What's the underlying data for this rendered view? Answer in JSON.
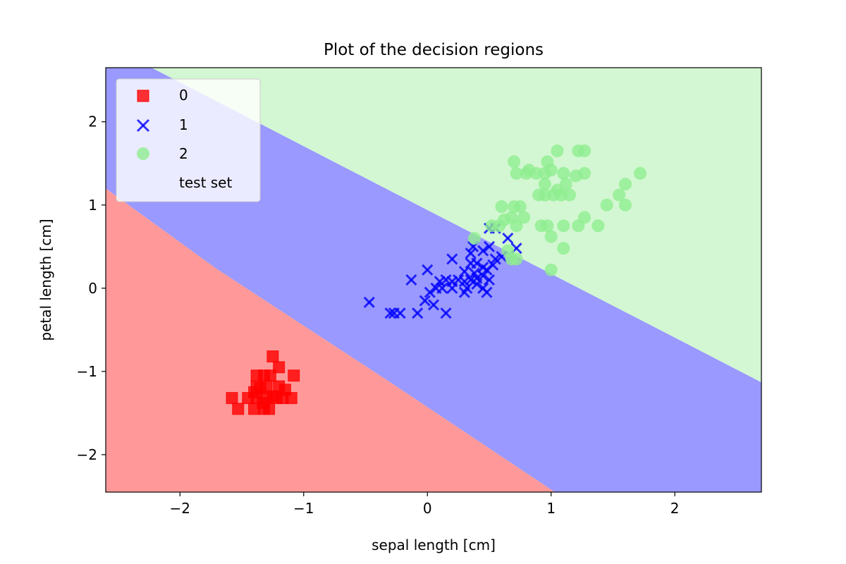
{
  "chart_data": {
    "type": "scatter",
    "title": "Plot of the decision regions",
    "xlabel": "sepal length [cm]",
    "ylabel": "petal length [cm]",
    "xlim": [
      -2.6,
      2.7
    ],
    "ylim": [
      -2.45,
      2.65
    ],
    "xticks": [
      -2,
      -1,
      0,
      1,
      2
    ],
    "yticks": [
      -2,
      -1,
      0,
      1,
      2
    ],
    "xtick_labels": [
      "−2",
      "−1",
      "0",
      "1",
      "2"
    ],
    "ytick_labels": [
      "−2",
      "−1",
      "0",
      "1",
      "2"
    ],
    "grid": false,
    "legend_position": "top-left",
    "regions": [
      {
        "class": "0",
        "color": "#ff9999",
        "polygon": [
          [
            -2.6,
            1.2
          ],
          [
            -1.7,
            0.23
          ],
          [
            -0.3,
            -1.13
          ],
          [
            1.03,
            -2.45
          ],
          [
            -2.6,
            -2.45
          ]
        ]
      },
      {
        "class": "1",
        "color": "#9999ff",
        "polygon": [
          [
            -2.6,
            1.2
          ],
          [
            -1.7,
            0.23
          ],
          [
            -0.3,
            -1.13
          ],
          [
            1.03,
            -2.45
          ],
          [
            2.7,
            -2.45
          ],
          [
            2.7,
            -1.13
          ],
          [
            -2.23,
            2.65
          ],
          [
            -2.6,
            2.65
          ]
        ]
      },
      {
        "class": "2",
        "color": "#d2f7d2",
        "polygon": [
          [
            -2.23,
            2.65
          ],
          [
            2.7,
            -1.13
          ],
          [
            2.7,
            2.65
          ]
        ]
      }
    ],
    "series": [
      {
        "name": "0",
        "marker": "square",
        "color": "#ff0000",
        "points": [
          [
            -1.25,
            -0.82
          ],
          [
            -1.38,
            -1.05
          ],
          [
            -1.32,
            -1.05
          ],
          [
            -1.27,
            -1.05
          ],
          [
            -1.08,
            -1.05
          ],
          [
            -1.2,
            -0.95
          ],
          [
            -1.38,
            -1.18
          ],
          [
            -1.3,
            -1.18
          ],
          [
            -1.2,
            -1.18
          ],
          [
            -1.35,
            -1.2
          ],
          [
            -1.45,
            -1.32
          ],
          [
            -1.38,
            -1.32
          ],
          [
            -1.3,
            -1.32
          ],
          [
            -1.22,
            -1.32
          ],
          [
            -1.17,
            -1.32
          ],
          [
            -1.1,
            -1.32
          ],
          [
            -1.58,
            -1.32
          ],
          [
            -1.53,
            -1.45
          ],
          [
            -1.4,
            -1.45
          ],
          [
            -1.32,
            -1.45
          ],
          [
            -1.28,
            -1.45
          ],
          [
            -1.33,
            -1.38
          ],
          [
            -1.25,
            -1.3
          ],
          [
            -1.15,
            -1.22
          ],
          [
            -1.4,
            -1.25
          ]
        ]
      },
      {
        "name": "1",
        "marker": "x",
        "color": "#0000ff",
        "points": [
          [
            -0.47,
            -0.17
          ],
          [
            -0.3,
            -0.3
          ],
          [
            -0.27,
            -0.3
          ],
          [
            -0.22,
            -0.3
          ],
          [
            -0.08,
            -0.3
          ],
          [
            -0.13,
            0.1
          ],
          [
            0.0,
            0.22
          ],
          [
            0.15,
            -0.3
          ],
          [
            0.05,
            -0.2
          ],
          [
            -0.02,
            -0.15
          ],
          [
            0.02,
            -0.05
          ],
          [
            0.07,
            0.0
          ],
          [
            0.1,
            0.08
          ],
          [
            0.15,
            0.1
          ],
          [
            0.2,
            0.08
          ],
          [
            0.25,
            0.1
          ],
          [
            0.3,
            0.08
          ],
          [
            0.35,
            0.1
          ],
          [
            0.4,
            0.12
          ],
          [
            0.5,
            0.1
          ],
          [
            0.12,
            0.0
          ],
          [
            0.2,
            0.0
          ],
          [
            0.32,
            0.0
          ],
          [
            0.45,
            0.0
          ],
          [
            0.48,
            -0.05
          ],
          [
            0.2,
            0.35
          ],
          [
            0.35,
            0.42
          ],
          [
            0.37,
            0.5
          ],
          [
            0.45,
            0.45
          ],
          [
            0.5,
            0.5
          ],
          [
            0.55,
            0.35
          ],
          [
            0.6,
            0.38
          ],
          [
            0.35,
            0.3
          ],
          [
            0.4,
            0.3
          ],
          [
            0.45,
            0.25
          ],
          [
            0.3,
            0.2
          ],
          [
            0.38,
            0.18
          ],
          [
            0.45,
            0.15
          ],
          [
            0.53,
            0.28
          ],
          [
            0.48,
            0.22
          ],
          [
            0.4,
            0.05
          ],
          [
            0.3,
            -0.05
          ],
          [
            0.65,
            0.6
          ],
          [
            0.72,
            0.48
          ],
          [
            0.5,
            0.72
          ],
          [
            0.55,
            0.72
          ]
        ]
      },
      {
        "name": "2",
        "marker": "circle",
        "color": "#90ee90",
        "points": [
          [
            0.7,
            1.52
          ],
          [
            0.82,
            1.42
          ],
          [
            0.97,
            1.52
          ],
          [
            1.05,
            1.65
          ],
          [
            1.22,
            1.65
          ],
          [
            1.27,
            1.65
          ],
          [
            1.0,
            1.42
          ],
          [
            0.72,
            1.38
          ],
          [
            0.8,
            1.38
          ],
          [
            0.88,
            1.38
          ],
          [
            0.95,
            1.38
          ],
          [
            1.1,
            1.38
          ],
          [
            1.27,
            1.38
          ],
          [
            1.2,
            1.35
          ],
          [
            1.72,
            1.38
          ],
          [
            0.95,
            1.25
          ],
          [
            1.12,
            1.25
          ],
          [
            1.05,
            1.18
          ],
          [
            0.9,
            1.12
          ],
          [
            0.95,
            1.12
          ],
          [
            1.02,
            1.12
          ],
          [
            1.08,
            1.12
          ],
          [
            1.15,
            1.12
          ],
          [
            1.6,
            1.25
          ],
          [
            1.55,
            1.12
          ],
          [
            1.45,
            1.0
          ],
          [
            1.6,
            1.0
          ],
          [
            0.6,
            0.98
          ],
          [
            0.7,
            0.98
          ],
          [
            0.75,
            0.98
          ],
          [
            0.78,
            0.85
          ],
          [
            0.68,
            0.85
          ],
          [
            0.62,
            0.82
          ],
          [
            1.27,
            0.85
          ],
          [
            0.58,
            0.75
          ],
          [
            0.72,
            0.75
          ],
          [
            0.92,
            0.75
          ],
          [
            0.97,
            0.75
          ],
          [
            1.1,
            0.75
          ],
          [
            1.22,
            0.75
          ],
          [
            1.38,
            0.75
          ],
          [
            1.0,
            0.62
          ],
          [
            0.38,
            0.6
          ],
          [
            0.65,
            0.45
          ],
          [
            0.68,
            0.35
          ],
          [
            0.72,
            0.35
          ],
          [
            1.1,
            0.48
          ],
          [
            1.0,
            0.22
          ],
          [
            0.52,
            0.75
          ]
        ]
      }
    ],
    "legend": [
      "0",
      "1",
      "2",
      "test set"
    ]
  }
}
